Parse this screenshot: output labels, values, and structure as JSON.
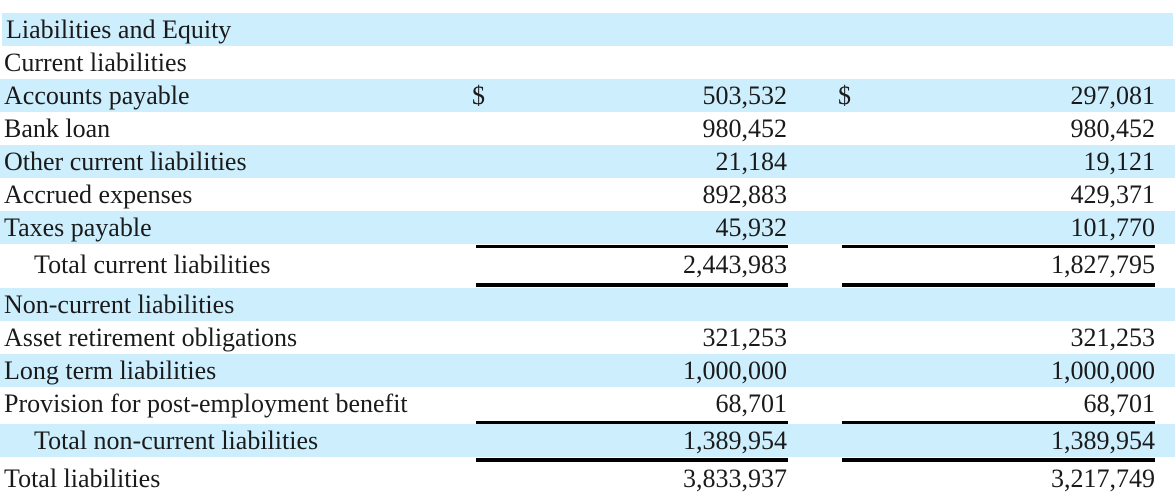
{
  "rows": [
    {
      "label": "Liabilities and Equity"
    },
    {
      "label": "Current liabilities"
    },
    {
      "label": "Accounts payable",
      "currency": "$",
      "col1": "503,532",
      "col2": "297,081"
    },
    {
      "label": "Bank loan",
      "col1": "980,452",
      "col2": "980,452"
    },
    {
      "label": "Other current liabilities",
      "col1": "21,184",
      "col2": "19,121"
    },
    {
      "label": "Accrued expenses",
      "col1": "892,883",
      "col2": "429,371"
    },
    {
      "label": "Taxes payable",
      "col1": "45,932",
      "col2": "101,770"
    },
    {
      "label": "Total current liabilities",
      "col1": "2,443,983",
      "col2": "1,827,795"
    },
    {
      "label": "Non-current liabilities"
    },
    {
      "label": "Asset retirement obligations",
      "col1": "321,253",
      "col2": "321,253"
    },
    {
      "label": "Long term liabilities",
      "col1": "1,000,000",
      "col2": "1,000,000"
    },
    {
      "label": "Provision for post-employment benefit",
      "col1": "68,701",
      "col2": "68,701"
    },
    {
      "label": "Total non-current liabilities",
      "col1": "1,389,954",
      "col2": "1,389,954"
    },
    {
      "label": "Total liabilities",
      "col1": "3,833,937",
      "col2": "3,217,749"
    }
  ],
  "colors": {
    "band": "#cdeefd",
    "text": "#1a1a1a"
  }
}
